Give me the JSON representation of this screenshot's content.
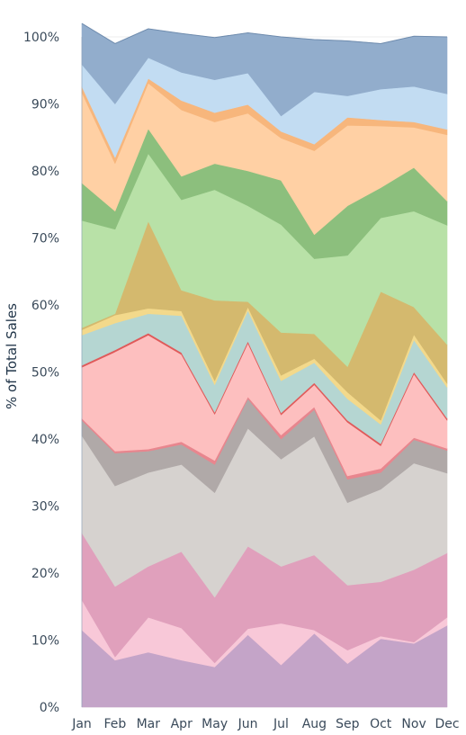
{
  "chart_data": {
    "type": "area",
    "stacked": true,
    "normalized_percent": true,
    "title": "",
    "xlabel": "",
    "ylabel": "% of Total Sales",
    "ylim": [
      0,
      100
    ],
    "y_ticks": [
      "0%",
      "10%",
      "20%",
      "30%",
      "40%",
      "50%",
      "60%",
      "70%",
      "80%",
      "90%",
      "100%"
    ],
    "categories": [
      "Jan",
      "Feb",
      "Mar",
      "Apr",
      "May",
      "Jun",
      "Jul",
      "Aug",
      "Sep",
      "Oct",
      "Nov",
      "Dec"
    ],
    "grid": "horizontal",
    "legend": "none",
    "series": [
      {
        "color": "#c4a4c8",
        "values": [
          11.5,
          7.0,
          8.2,
          7.0,
          6.0,
          10.8,
          6.3,
          11.0,
          6.5,
          10.2,
          9.5,
          12.2
        ]
      },
      {
        "color": "#f8c8d8",
        "values": [
          4.5,
          0.5,
          5.2,
          4.8,
          0.6,
          0.9,
          6.2,
          0.5,
          2.0,
          0.4,
          0.2,
          1.2
        ]
      },
      {
        "color": "#e0a0bc",
        "values": [
          10.0,
          10.5,
          7.6,
          11.4,
          9.8,
          12.3,
          8.5,
          11.2,
          9.7,
          8.1,
          10.8,
          9.6
        ]
      },
      {
        "color": "#d6d2cf",
        "values": [
          14.5,
          15.0,
          14.0,
          13.0,
          15.6,
          17.6,
          16.0,
          17.7,
          12.3,
          13.8,
          15.9,
          11.9
        ]
      },
      {
        "color": "#b0a9a8",
        "values": [
          2.3,
          4.9,
          3.2,
          3.0,
          4.2,
          4.4,
          3.0,
          4.0,
          3.5,
          2.5,
          3.5,
          3.4
        ]
      },
      {
        "color": "#e8868e",
        "values": [
          0.3,
          0.3,
          0.3,
          0.4,
          0.6,
          0.3,
          0.6,
          0.4,
          0.5,
          0.6,
          0.3,
          0.3
        ]
      },
      {
        "color": "#fdbfbf",
        "values": [
          7.6,
          14.8,
          17.0,
          13.0,
          6.9,
          8.0,
          3.0,
          3.3,
          8.0,
          3.4,
          9.5,
          4.2
        ]
      },
      {
        "color": "#e05a5a",
        "values": [
          0.3,
          0.3,
          0.3,
          0.3,
          0.3,
          0.3,
          0.3,
          0.3,
          0.3,
          0.3,
          0.3,
          0.3
        ]
      },
      {
        "color": "#b5d6d2",
        "values": [
          4.5,
          4.0,
          2.9,
          5.5,
          4.1,
          4.6,
          4.8,
          3.0,
          3.2,
          2.9,
          4.8,
          4.6
        ]
      },
      {
        "color": "#f3d98b",
        "values": [
          0.8,
          1.2,
          0.8,
          0.7,
          0.6,
          0.5,
          0.8,
          0.6,
          1.0,
          0.6,
          0.8,
          0.6
        ]
      },
      {
        "color": "#d4b96e",
        "values": [
          0.3,
          0.2,
          13.0,
          3.1,
          12.0,
          0.8,
          6.4,
          3.7,
          3.8,
          19.2,
          4.1,
          5.8
        ]
      },
      {
        "color": "#b8e1a7",
        "values": [
          16.0,
          12.6,
          10.1,
          13.5,
          16.5,
          14.3,
          16.1,
          11.2,
          16.6,
          11.0,
          14.3,
          17.8
        ]
      },
      {
        "color": "#8cbf7d",
        "values": [
          5.6,
          2.7,
          3.7,
          3.5,
          3.9,
          5.2,
          6.6,
          3.6,
          7.4,
          4.5,
          6.5,
          3.6
        ]
      },
      {
        "color": "#ffd0a4",
        "values": [
          13.5,
          7.1,
          6.8,
          9.9,
          6.2,
          8.6,
          6.3,
          12.5,
          12.0,
          9.2,
          6.0,
          9.9
        ]
      },
      {
        "color": "#f7b67c",
        "values": [
          0.9,
          0.9,
          0.7,
          1.4,
          1.4,
          1.3,
          1.0,
          1.0,
          1.2,
          0.9,
          0.8,
          0.8
        ]
      },
      {
        "color": "#c2dcf2",
        "values": [
          3.3,
          8.0,
          3.1,
          4.2,
          4.9,
          4.7,
          2.3,
          7.8,
          3.2,
          4.6,
          5.3,
          5.3
        ]
      },
      {
        "color": "#92adcc",
        "values": [
          6.1,
          9.0,
          4.3,
          5.8,
          6.3,
          6.0,
          11.8,
          7.8,
          8.2,
          6.8,
          7.5,
          8.5
        ]
      }
    ]
  }
}
